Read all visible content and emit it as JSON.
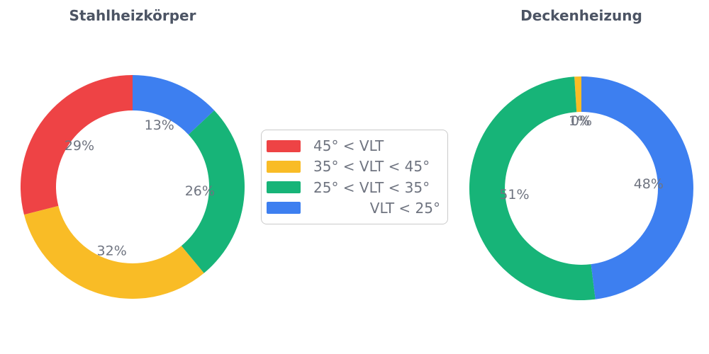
{
  "figure": {
    "background": "#ffffff",
    "title_color": "#4C5464",
    "label_color": "#6F7480"
  },
  "legend": {
    "border_color": "#CBCBCB",
    "text_color": "#6F7480",
    "items": [
      {
        "label": "45° < VLT",
        "color": "#EE4345",
        "swatch": "red-swatch"
      },
      {
        "label": "35° < VLT < 45°",
        "color": "#F9BC26",
        "swatch": "yellow-swatch"
      },
      {
        "label": "25° < VLT < 35°",
        "color": "#17B478",
        "swatch": "green-swatch"
      },
      {
        "label": "VLT < 25°",
        "color": "#3D7FF0",
        "swatch": "blue-swatch"
      }
    ]
  },
  "chart_data": [
    {
      "type": "pie",
      "subtype": "donut",
      "title": "Stahlheizkörper",
      "start_angle": 90,
      "direction": "counterclockwise",
      "categories": [
        "45° < VLT",
        "35° < VLT < 45°",
        "25° < VLT < 35°",
        "VLT < 25°"
      ],
      "values": [
        29,
        32,
        26,
        13
      ],
      "labels": [
        "29%",
        "32%",
        "26%",
        "13%"
      ],
      "colors": [
        "#EE4345",
        "#F9BC26",
        "#17B478",
        "#3D7FF0"
      ],
      "label_color": "#6F7480"
    },
    {
      "type": "pie",
      "subtype": "donut",
      "title": "Deckenheizung",
      "start_angle": 90,
      "direction": "counterclockwise",
      "categories": [
        "45° < VLT",
        "35° < VLT < 45°",
        "25° < VLT < 35°",
        "VLT < 25°"
      ],
      "values": [
        0,
        1,
        51,
        48
      ],
      "labels": [
        "0%",
        "1%",
        "51%",
        "48%"
      ],
      "colors": [
        "#EE4345",
        "#F9BC26",
        "#17B478",
        "#3D7FF0"
      ],
      "label_color": "#6F7480"
    }
  ]
}
